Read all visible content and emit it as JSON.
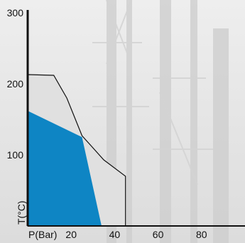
{
  "chart_data": {
    "type": "area",
    "title": "",
    "xlabel": "P(Bar)",
    "ylabel": "T(°C)",
    "xlim": [
      0,
      100
    ],
    "ylim": [
      0,
      300
    ],
    "x_ticks": [
      20,
      40,
      60,
      80
    ],
    "y_ticks": [
      100,
      200,
      300
    ],
    "grid": false,
    "series": [
      {
        "fill": "#e0e0e0",
        "stroke": "#111111",
        "points": [
          [
            0,
            213
          ],
          [
            12,
            212
          ],
          [
            18,
            180
          ],
          [
            25,
            127
          ],
          [
            35,
            93
          ],
          [
            45,
            70
          ],
          [
            45,
            0
          ],
          [
            0,
            0
          ]
        ]
      },
      {
        "fill": "#0e85c4",
        "stroke": "none",
        "points": [
          [
            0,
            162
          ],
          [
            25,
            125
          ],
          [
            34,
            0
          ],
          [
            0,
            0
          ]
        ]
      }
    ]
  },
  "colors": {
    "axis": "#111111",
    "background": "#e6e6e6"
  }
}
